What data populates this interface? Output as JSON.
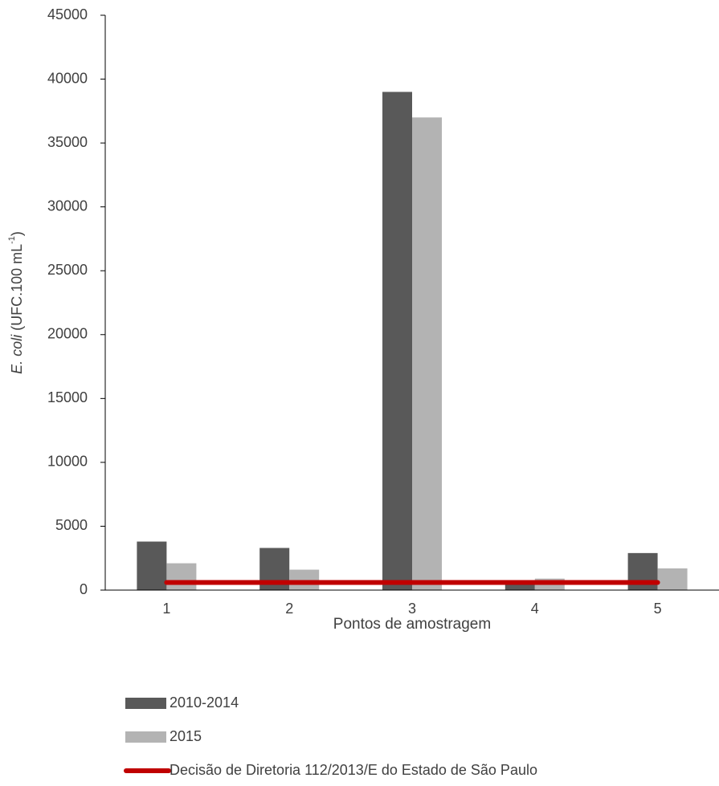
{
  "chart_data": {
    "type": "bar",
    "y_label": [
      "E. coli",
      " (UFC.100 mL",
      "-1",
      ")"
    ],
    "x_label": "Pontos de amostragem",
    "categories": [
      "1",
      "2",
      "3",
      "4",
      "5"
    ],
    "series": [
      {
        "name": "2010-2014",
        "color": "#595959",
        "values": [
          3800,
          3300,
          39000,
          600,
          2900
        ]
      },
      {
        "name": "2015",
        "color": "#b3b3b3",
        "values": [
          2100,
          1600,
          37000,
          900,
          1700
        ]
      },
      {
        "name": "Decisão de Diretoria 112/2013/E do Estado de São Paulo",
        "color": "#c00000",
        "type": "line",
        "values": [
          600,
          600,
          600,
          600,
          600
        ]
      }
    ],
    "ylim": [
      0,
      45000
    ],
    "yticks": [
      0,
      5000,
      10000,
      15000,
      20000,
      25000,
      30000,
      35000,
      40000,
      45000
    ],
    "grid": false,
    "legend": "bottom"
  }
}
